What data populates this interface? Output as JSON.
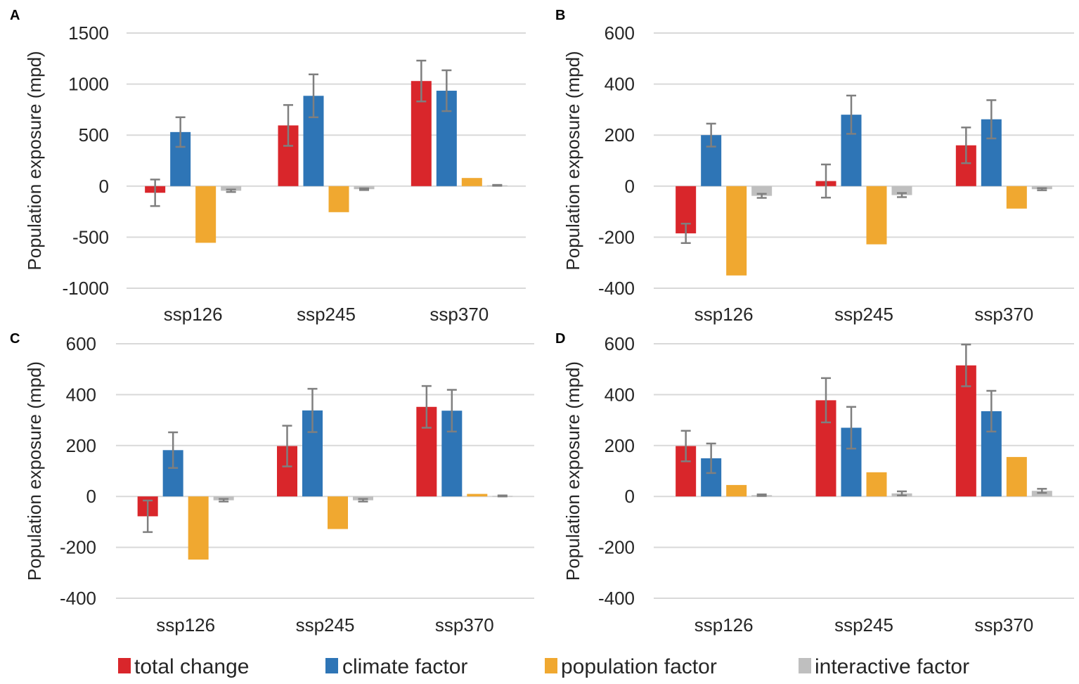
{
  "series_names": [
    "total change",
    "climate factor",
    "population factor",
    "interactive factor"
  ],
  "series_colors": [
    "#d9262b",
    "#2e75b6",
    "#f0a830",
    "#bfbfbf"
  ],
  "error_bar_color": "#7f7f7f",
  "chart_data": [
    {
      "type": "bar",
      "panel": "A",
      "ylabel": "Population exposure (mpd)",
      "categories": [
        "ssp126",
        "ssp245",
        "ssp370"
      ],
      "ylim": [
        -1000,
        1500
      ],
      "yticks": [
        1500,
        1000,
        500,
        0,
        -500,
        -1000
      ],
      "ytick_labels": [
        "1500",
        "1000",
        "500",
        "0",
        "-500",
        "-1000"
      ],
      "series": [
        {
          "name": "total change",
          "values": [
            -65,
            595,
            1030
          ],
          "errors": [
            130,
            200,
            200
          ]
        },
        {
          "name": "climate factor",
          "values": [
            530,
            885,
            935
          ],
          "errors": [
            145,
            210,
            200
          ]
        },
        {
          "name": "population factor",
          "values": [
            -555,
            -255,
            80
          ],
          "errors": [
            null,
            null,
            null
          ]
        },
        {
          "name": "interactive factor",
          "values": [
            -45,
            -30,
            8
          ],
          "errors": [
            12,
            8,
            4
          ]
        }
      ]
    },
    {
      "type": "bar",
      "panel": "B",
      "ylabel": "Population exposure (mpd)",
      "categories": [
        "ssp126",
        "ssp245",
        "ssp370"
      ],
      "ylim": [
        -400,
        600
      ],
      "yticks": [
        600,
        400,
        200,
        0,
        -200,
        -400
      ],
      "ytick_labels": [
        "600",
        "400",
        "200",
        "0",
        "-200",
        "-400"
      ],
      "series": [
        {
          "name": "total change",
          "values": [
            -185,
            20,
            160
          ],
          "errors": [
            38,
            65,
            70
          ]
        },
        {
          "name": "climate factor",
          "values": [
            200,
            280,
            262
          ],
          "errors": [
            45,
            75,
            75
          ]
        },
        {
          "name": "population factor",
          "values": [
            -350,
            -228,
            -88
          ],
          "errors": [
            null,
            null,
            null
          ]
        },
        {
          "name": "interactive factor",
          "values": [
            -38,
            -35,
            -12
          ],
          "errors": [
            8,
            8,
            4
          ]
        }
      ]
    },
    {
      "type": "bar",
      "panel": "C",
      "ylabel": "Population exposure (mpd)",
      "categories": [
        "ssp126",
        "ssp245",
        "ssp370"
      ],
      "ylim": [
        -400,
        600
      ],
      "yticks": [
        600,
        400,
        200,
        0,
        -200,
        -400
      ],
      "ytick_labels": [
        "600",
        "400",
        "200",
        "0",
        "-200",
        "-400"
      ],
      "series": [
        {
          "name": "total change",
          "values": [
            -78,
            198,
            352
          ],
          "errors": [
            62,
            80,
            82
          ]
        },
        {
          "name": "climate factor",
          "values": [
            182,
            338,
            337
          ],
          "errors": [
            70,
            85,
            82
          ]
        },
        {
          "name": "population factor",
          "values": [
            -248,
            -128,
            10
          ],
          "errors": [
            null,
            null,
            null
          ]
        },
        {
          "name": "interactive factor",
          "values": [
            -15,
            -15,
            2
          ],
          "errors": [
            5,
            5,
            2
          ]
        }
      ]
    },
    {
      "type": "bar",
      "panel": "D",
      "ylabel": "Population exposure (mpd)",
      "categories": [
        "ssp126",
        "ssp245",
        "ssp370"
      ],
      "ylim": [
        -400,
        600
      ],
      "yticks": [
        600,
        400,
        200,
        0,
        -200,
        -400
      ],
      "ytick_labels": [
        "600",
        "400",
        "200",
        "0",
        "-200",
        "-400"
      ],
      "series": [
        {
          "name": "total change",
          "values": [
            198,
            378,
            515
          ],
          "errors": [
            60,
            87,
            82
          ]
        },
        {
          "name": "climate factor",
          "values": [
            150,
            270,
            335
          ],
          "errors": [
            58,
            82,
            80
          ]
        },
        {
          "name": "population factor",
          "values": [
            45,
            95,
            155
          ],
          "errors": [
            null,
            null,
            null
          ]
        },
        {
          "name": "interactive factor",
          "values": [
            5,
            12,
            22
          ],
          "errors": [
            3,
            8,
            8
          ]
        }
      ]
    }
  ]
}
